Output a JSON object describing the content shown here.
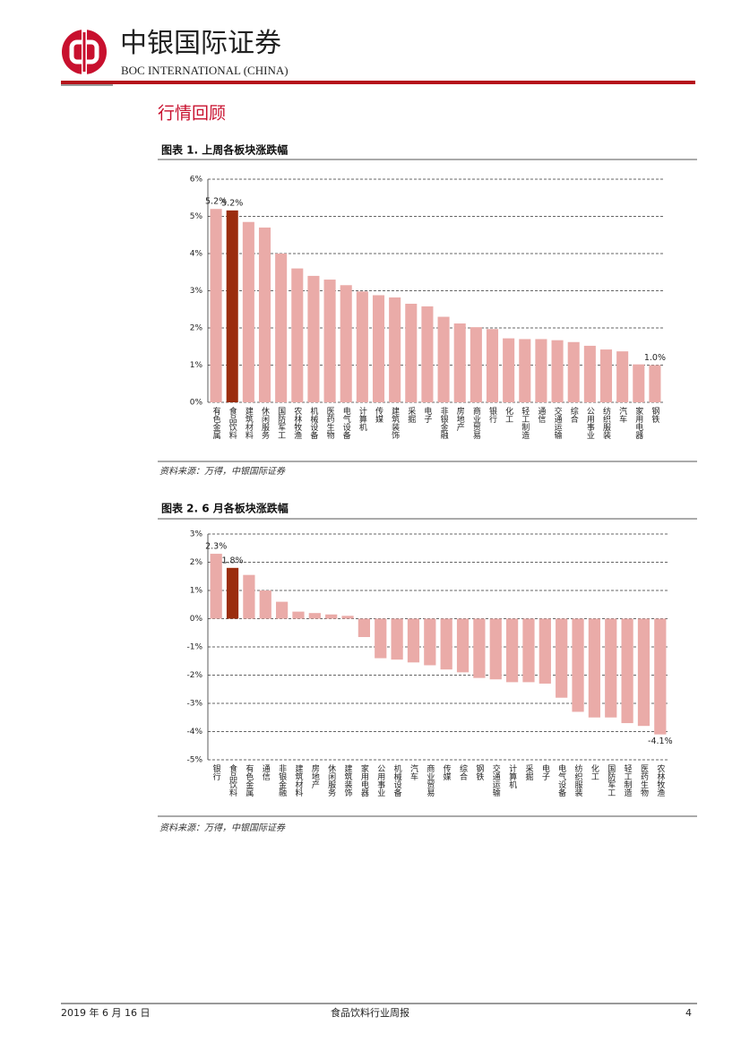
{
  "header": {
    "company": "中银国际证券",
    "company_en": "BOC INTERNATIONAL (CHINA)"
  },
  "section_title": "行情回顾",
  "figures": [
    {
      "title": "图表 1. 上周各板块涨跌幅",
      "chart_data": {
        "type": "bar",
        "categories": [
          "有色金属",
          "食品饮料",
          "建筑材料",
          "休闲服务",
          "国防军工",
          "农林牧渔",
          "机械设备",
          "医药生物",
          "电气设备",
          "计算机",
          "传媒",
          "建筑装饰",
          "采掘",
          "电子",
          "非银金融",
          "房地产",
          "商业贸易",
          "银行",
          "化工",
          "轻工制造",
          "通信",
          "交通运输",
          "综合",
          "公用事业",
          "纺织服装",
          "汽车",
          "家用电器",
          "钢铁"
        ],
        "values": [
          5.2,
          5.16,
          4.85,
          4.7,
          4.0,
          3.6,
          3.4,
          3.3,
          3.15,
          2.98,
          2.88,
          2.82,
          2.65,
          2.58,
          2.3,
          2.12,
          2.02,
          1.97,
          1.72,
          1.7,
          1.7,
          1.67,
          1.62,
          1.52,
          1.42,
          1.37,
          1.02,
          1.0
        ],
        "value_labels": [
          "5.2%",
          "5.2%",
          null,
          null,
          null,
          null,
          null,
          null,
          null,
          null,
          null,
          null,
          null,
          null,
          null,
          null,
          null,
          null,
          null,
          null,
          null,
          null,
          null,
          null,
          null,
          null,
          null,
          "1.0%"
        ],
        "colors": [
          "#eaaba8",
          "#9b2d0e",
          "#eaaba8",
          "#eaaba8",
          "#eaaba8",
          "#eaaba8",
          "#eaaba8",
          "#eaaba8",
          "#eaaba8",
          "#eaaba8",
          "#eaaba8",
          "#eaaba8",
          "#eaaba8",
          "#eaaba8",
          "#eaaba8",
          "#eaaba8",
          "#eaaba8",
          "#eaaba8",
          "#eaaba8",
          "#eaaba8",
          "#eaaba8",
          "#eaaba8",
          "#eaaba8",
          "#eaaba8",
          "#eaaba8",
          "#eaaba8",
          "#eaaba8",
          "#eaaba8"
        ],
        "ylim": [
          0,
          6
        ],
        "yticks": [
          {
            "value": 0,
            "label": "0%"
          },
          {
            "value": 1,
            "label": "1%"
          },
          {
            "value": 2,
            "label": "2%"
          },
          {
            "value": 3,
            "label": "3%"
          },
          {
            "value": 4,
            "label": "4%"
          },
          {
            "value": 5,
            "label": "5%"
          },
          {
            "value": 6,
            "label": "6%"
          }
        ],
        "grid": true
      },
      "source": "资料来源：万得，中银国际证券"
    },
    {
      "title": "图表 2. 6 月各板块涨跌幅",
      "chart_data": {
        "type": "bar",
        "categories": [
          "银行",
          "食品饮料",
          "有色金属",
          "通信",
          "非银金融",
          "建筑材料",
          "房地产",
          "休闲服务",
          "建筑装饰",
          "家用电器",
          "公用事业",
          "机械设备",
          "汽车",
          "商业贸易",
          "传媒",
          "综合",
          "钢铁",
          "交通运输",
          "计算机",
          "采掘",
          "电子",
          "电气设备",
          "纺织服装",
          "化工",
          "国防军工",
          "轻工制造",
          "医药生物",
          "农林牧渔"
        ],
        "values": [
          2.3,
          1.8,
          1.55,
          1.0,
          0.6,
          0.25,
          0.2,
          0.15,
          0.1,
          -0.65,
          -1.4,
          -1.45,
          -1.55,
          -1.65,
          -1.8,
          -1.9,
          -2.1,
          -2.15,
          -2.25,
          -2.25,
          -2.3,
          -2.8,
          -3.3,
          -3.5,
          -3.5,
          -3.7,
          -3.8,
          -4.1
        ],
        "value_labels": [
          "2.3%",
          "1.8%",
          null,
          null,
          null,
          null,
          null,
          null,
          null,
          null,
          null,
          null,
          null,
          null,
          null,
          null,
          null,
          null,
          null,
          null,
          null,
          null,
          null,
          null,
          null,
          null,
          null,
          "-4.1%"
        ],
        "colors": [
          "#eaaba8",
          "#9b2d0e",
          "#eaaba8",
          "#eaaba8",
          "#eaaba8",
          "#eaaba8",
          "#eaaba8",
          "#eaaba8",
          "#eaaba8",
          "#eaaba8",
          "#eaaba8",
          "#eaaba8",
          "#eaaba8",
          "#eaaba8",
          "#eaaba8",
          "#eaaba8",
          "#eaaba8",
          "#eaaba8",
          "#eaaba8",
          "#eaaba8",
          "#eaaba8",
          "#eaaba8",
          "#eaaba8",
          "#eaaba8",
          "#eaaba8",
          "#eaaba8",
          "#eaaba8",
          "#eaaba8"
        ],
        "ylim": [
          -5,
          3
        ],
        "yticks": [
          {
            "value": 3,
            "label": "3%"
          },
          {
            "value": 2,
            "label": "2%"
          },
          {
            "value": 1,
            "label": "1%"
          },
          {
            "value": 0,
            "label": "0%"
          },
          {
            "value": -1,
            "label": "-1%"
          },
          {
            "value": -2,
            "label": "-2%"
          },
          {
            "value": -3,
            "label": "-3%"
          },
          {
            "value": -4,
            "label": "-4%"
          },
          {
            "value": -5,
            "label": "-5%"
          }
        ],
        "grid": true
      },
      "source": "资料来源：万得，中银国际证券"
    }
  ],
  "footer": {
    "date": "2019 年 6 月 16 日",
    "title": "食品饮料行业周报",
    "page": "4"
  }
}
